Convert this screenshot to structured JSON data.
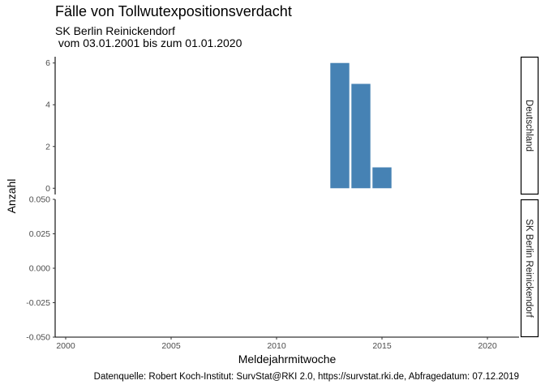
{
  "chart_data": {
    "type": "bar",
    "title": "Fälle von Tollwutexpositionsverdacht",
    "subtitle_line1": "SK Berlin Reinickendorf",
    "subtitle_line2": " vom 03.01.2001 bis zum 01.01.2020",
    "xlabel": "Meldejahrmitwoche",
    "ylabel": "Anzahl",
    "caption": "Datenquelle: Robert Koch-Institut: SurvStat@RKI 2.0, https://survstat.rki.de, Abfragedatum: 07.12.2019",
    "xlim": [
      1999.5,
      2021.5
    ],
    "x_ticks": [
      2000,
      2005,
      2010,
      2015,
      2020
    ],
    "x_tick_labels": [
      "2000",
      "2005",
      "2010",
      "2015",
      "2020"
    ],
    "grid": false,
    "bar_color": "#4682B4",
    "panels": [
      {
        "strip": "Deutschland",
        "ylim": [
          -0.3,
          6.3
        ],
        "y_ticks": [
          0,
          2,
          4,
          6
        ],
        "y_tick_labels": [
          "0",
          "2",
          "4",
          "6"
        ],
        "bars": [
          {
            "x": 2013,
            "value": 6
          },
          {
            "x": 2014,
            "value": 5
          },
          {
            "x": 2015,
            "value": 1
          }
        ]
      },
      {
        "strip": "SK Berlin Reinickendorf",
        "ylim": [
          -0.05,
          0.05
        ],
        "y_ticks": [
          -0.05,
          -0.025,
          0,
          0.025,
          0.05
        ],
        "y_tick_labels": [
          "-0.050",
          "-0.025",
          "0.000",
          "0.025",
          "0.050"
        ],
        "bars": []
      }
    ]
  }
}
